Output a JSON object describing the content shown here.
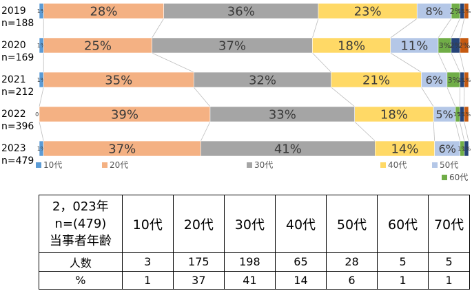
{
  "chart_data": {
    "type": "bar",
    "orientation": "horizontal",
    "stacked": "percent",
    "categories": [
      "2019",
      "2020",
      "2021",
      "2022",
      "2023"
    ],
    "n_labels": [
      "n=188",
      "n=169",
      "n=212",
      "n=396",
      "n=479"
    ],
    "series": [
      {
        "name": "10代",
        "color": "#5b9bd5",
        "values": [
          1,
          1,
          1,
          0,
          1
        ],
        "labels": [
          "1%",
          "1%",
          "1%",
          "0%",
          "1%"
        ]
      },
      {
        "name": "20代",
        "color": "#f4b183",
        "values": [
          28,
          25,
          35,
          39,
          37
        ],
        "labels": [
          "28%",
          "25%",
          "35%",
          "39%",
          "37%"
        ]
      },
      {
        "name": "30代",
        "color": "#a5a5a5",
        "values": [
          36,
          37,
          32,
          33,
          41
        ],
        "labels": [
          "36%",
          "37%",
          "32%",
          "33%",
          "41%"
        ]
      },
      {
        "name": "40代",
        "color": "#ffd966",
        "values": [
          23,
          18,
          21,
          18,
          14
        ],
        "labels": [
          "23%",
          "18%",
          "21%",
          "18%",
          "14%"
        ]
      },
      {
        "name": "50代",
        "color": "#b4c7e7",
        "values": [
          8,
          11,
          6,
          5,
          6
        ],
        "labels": [
          "8%",
          "11%",
          "6%",
          "5%",
          "6%"
        ]
      },
      {
        "name": "60代",
        "color": "#70ad47",
        "values": [
          2,
          3,
          3,
          1,
          1
        ],
        "labels": [
          "2%",
          "3%",
          "3%",
          "1%",
          "1%"
        ]
      },
      {
        "name": "70代",
        "color": "#264478",
        "values": [
          1,
          2,
          1,
          1,
          1
        ],
        "labels": [
          "1%",
          "2%",
          "1%",
          "1%",
          "1%"
        ]
      },
      {
        "name": "",
        "color": "#c55a11",
        "values": [
          1,
          2,
          1,
          1,
          0
        ],
        "labels": [
          "1%",
          "2%",
          "1%",
          "1%",
          ""
        ]
      }
    ],
    "xlim": [
      0,
      100
    ],
    "legend": [
      "10代",
      "20代",
      "30代",
      "40代",
      "50代",
      "60代"
    ],
    "grid": false
  },
  "table": {
    "header_title_lines": [
      "2，023年",
      "n=(479)",
      "当事者年齢"
    ],
    "columns": [
      "10代",
      "20代",
      "30代",
      "40代",
      "50代",
      "60代",
      "70代"
    ],
    "rows": [
      {
        "label": "人数",
        "values": [
          "3",
          "175",
          "198",
          "65",
          "28",
          "5",
          "5"
        ]
      },
      {
        "label": "%",
        "values": [
          "1",
          "37",
          "41",
          "14",
          "6",
          "1",
          "1"
        ]
      }
    ]
  }
}
